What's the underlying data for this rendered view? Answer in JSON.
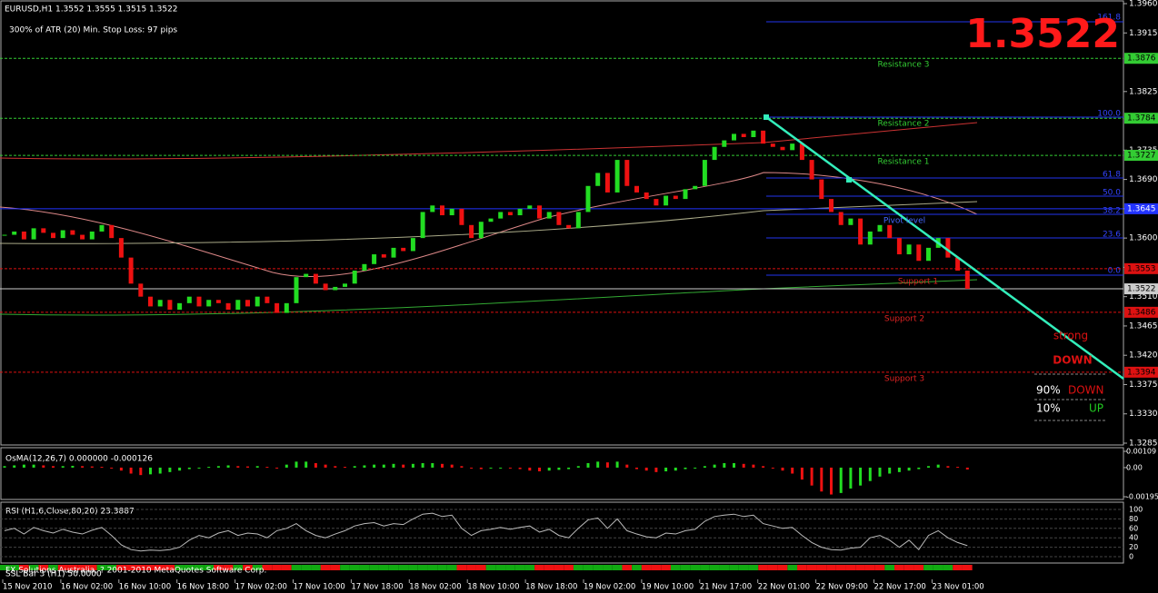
{
  "header": {
    "symbol": "EURUSD,H1  1.3552 1.3555 1.3515 1.3522",
    "atr": "300% of ATR (20)     Min. Stop Loss:    97 pips",
    "big_price": "1.3522"
  },
  "price_axis": {
    "range": [
      1.3285,
      1.396
    ],
    "ticks": [
      {
        "value": 1.396,
        "label": "1.3960"
      },
      {
        "value": 1.3915,
        "label": "1.3915"
      },
      {
        "value": 1.3825,
        "label": "1.3825"
      },
      {
        "value": 1.3735,
        "label": "1.3735"
      },
      {
        "value": 1.369,
        "label": "1.3690"
      },
      {
        "value": 1.3645,
        "label": "1.3645"
      },
      {
        "value": 1.36,
        "label": "1.3600"
      },
      {
        "value": 1.3555,
        "label": "1.3555"
      },
      {
        "value": 1.351,
        "label": "1.3510"
      },
      {
        "value": 1.3465,
        "label": "1.3465"
      },
      {
        "value": 1.342,
        "label": "1.3420"
      },
      {
        "value": 1.3375,
        "label": "1.3375"
      },
      {
        "value": 1.333,
        "label": "1.3330"
      },
      {
        "value": 1.3285,
        "label": "1.3285"
      }
    ],
    "levels": [
      {
        "value": 1.3876,
        "label": "1.3876",
        "color": "#33cc33"
      },
      {
        "value": 1.3784,
        "label": "1.3784",
        "color": "#33cc33"
      },
      {
        "value": 1.3727,
        "label": "1.3727",
        "color": "#33cc33"
      },
      {
        "value": 1.3645,
        "label": "1.3645",
        "color": "#2233ff"
      },
      {
        "value": 1.3553,
        "label": "1.3553",
        "color": "#dd1111"
      },
      {
        "value": 1.3522,
        "label": "1.3522",
        "color": "#cccccc"
      },
      {
        "value": 1.3486,
        "label": "1.3486",
        "color": "#dd1111"
      },
      {
        "value": 1.3394,
        "label": "1.3394",
        "color": "#dd1111"
      }
    ]
  },
  "level_labels": [
    "Resistance 3",
    "Resistance 2",
    "Resistance 1",
    "Pivot level",
    "Support 1",
    "Support 2",
    "Support 3"
  ],
  "fib_labels": [
    "161.8",
    "100.0",
    "61.8",
    "50.0",
    "38.2",
    "23.6",
    "0.0"
  ],
  "signal": {
    "strength": "strong",
    "direction": "DOWN",
    "down_pct": "90%",
    "down": "DOWN",
    "up_pct": "10%",
    "up": "UP"
  },
  "closes": [
    1.3605,
    1.361,
    1.3598,
    1.3615,
    1.3608,
    1.36,
    1.3612,
    1.3605,
    1.3598,
    1.361,
    1.362,
    1.36,
    1.357,
    1.353,
    1.351,
    1.3495,
    1.3505,
    1.349,
    1.35,
    1.351,
    1.3495,
    1.3505,
    1.35,
    1.349,
    1.3505,
    1.3495,
    1.351,
    1.35,
    1.3485,
    1.35,
    1.354,
    1.3545,
    1.353,
    1.352,
    1.3525,
    1.353,
    1.355,
    1.356,
    1.3575,
    1.357,
    1.3585,
    1.358,
    1.36,
    1.364,
    1.365,
    1.3635,
    1.3645,
    1.362,
    1.36,
    1.3625,
    1.363,
    1.364,
    1.3635,
    1.3645,
    1.365,
    1.363,
    1.364,
    1.362,
    1.3615,
    1.364,
    1.368,
    1.37,
    1.367,
    1.372,
    1.368,
    1.367,
    1.366,
    1.365,
    1.3665,
    1.366,
    1.3675,
    1.368,
    1.372,
    1.374,
    1.375,
    1.376,
    1.3755,
    1.3765,
    1.3745,
    1.374,
    1.3735,
    1.3745,
    1.372,
    1.369,
    1.366,
    1.364,
    1.362,
    1.363,
    1.359,
    1.361,
    1.362,
    1.36,
    1.3575,
    1.359,
    1.3565,
    1.3585,
    1.36,
    1.357,
    1.355,
    1.3522
  ],
  "osma": {
    "title": "OsMA(12,26,7) 0.000000 -0.000126",
    "range": [
      -0.00195,
      0.00109
    ],
    "ticks": [
      {
        "value": 0.00109,
        "label": "0.00109"
      },
      {
        "value": 0,
        "label": "0.00"
      },
      {
        "value": -0.00195,
        "label": "-0.00195"
      }
    ],
    "values": [
      0.0001,
      0.00015,
      0.0002,
      0.0002,
      0.00015,
      0.0001,
      0.0001,
      0.00012,
      0.0001,
      8e-05,
      5e-05,
      -5e-05,
      -0.0002,
      -0.0004,
      -0.0005,
      -0.00045,
      -0.0004,
      -0.0003,
      -0.0002,
      -0.0001,
      0,
      5e-05,
      0.0001,
      0.00015,
      0.0001,
      8e-05,
      0.0001,
      5e-05,
      0,
      0.0002,
      0.0004,
      0.0004,
      0.0003,
      0.0002,
      0.0001,
      5e-05,
      0.0001,
      0.00015,
      0.0002,
      0.0002,
      0.00025,
      0.0002,
      0.00025,
      0.0003,
      0.0003,
      0.00025,
      0.0002,
      0.0001,
      0,
      -0.0001,
      -5e-05,
      0,
      -5e-05,
      -0.0001,
      -0.0002,
      -0.00025,
      -0.0002,
      -0.00015,
      -0.0001,
      0.0001,
      0.0003,
      0.0004,
      0.00035,
      0.0004,
      0.0002,
      -0.0001,
      -0.0002,
      -0.0003,
      -0.00025,
      -0.0002,
      -0.0001,
      0,
      0.0001,
      0.0002,
      0.0003,
      0.0003,
      0.00025,
      0.0002,
      0.0001,
      0,
      -0.0002,
      -0.0004,
      -0.0008,
      -0.0012,
      -0.0016,
      -0.0018,
      -0.0017,
      -0.0014,
      -0.0012,
      -0.0009,
      -0.0006,
      -0.0004,
      -0.0003,
      -0.0002,
      -0.0001,
      0.0001,
      0.0002,
      0.0001,
      5e-05,
      -0.000126
    ]
  },
  "rsi": {
    "title": "RSI (H1,6,Close,80,20) 23.3887",
    "range": [
      0,
      100
    ],
    "ticks": [
      100,
      80,
      60,
      40,
      20,
      0
    ],
    "values": [
      55,
      60,
      48,
      62,
      55,
      50,
      58,
      52,
      48,
      56,
      62,
      45,
      25,
      15,
      12,
      14,
      13,
      15,
      20,
      35,
      45,
      40,
      50,
      55,
      45,
      50,
      48,
      40,
      55,
      60,
      70,
      55,
      45,
      40,
      48,
      55,
      65,
      70,
      72,
      65,
      70,
      68,
      80,
      90,
      92,
      85,
      88,
      60,
      45,
      55,
      58,
      62,
      58,
      62,
      65,
      52,
      58,
      45,
      40,
      60,
      78,
      82,
      60,
      80,
      55,
      48,
      42,
      40,
      50,
      48,
      55,
      58,
      75,
      85,
      88,
      90,
      85,
      88,
      70,
      65,
      60,
      62,
      45,
      30,
      20,
      15,
      14,
      18,
      20,
      40,
      45,
      35,
      20,
      35,
      15,
      45,
      55,
      40,
      30,
      23.3887
    ]
  },
  "footer": {
    "copyright": "FX Solutions Australia, ? 2001-2010 MetaQuotes Software Corp.",
    "ssl": "SSL Bar 3 (H1) 50.0000"
  },
  "time_labels": [
    "15 Nov 2010",
    "16 Nov 02:00",
    "16 Nov 10:00",
    "16 Nov 18:00",
    "17 Nov 02:00",
    "17 Nov 10:00",
    "17 Nov 18:00",
    "18 Nov 02:00",
    "18 Nov 10:00",
    "18 Nov 18:00",
    "19 Nov 02:00",
    "19 Nov 10:00",
    "21 Nov 17:00",
    "22 Nov 01:00",
    "22 Nov 09:00",
    "22 Nov 17:00",
    "23 Nov 01:00"
  ]
}
